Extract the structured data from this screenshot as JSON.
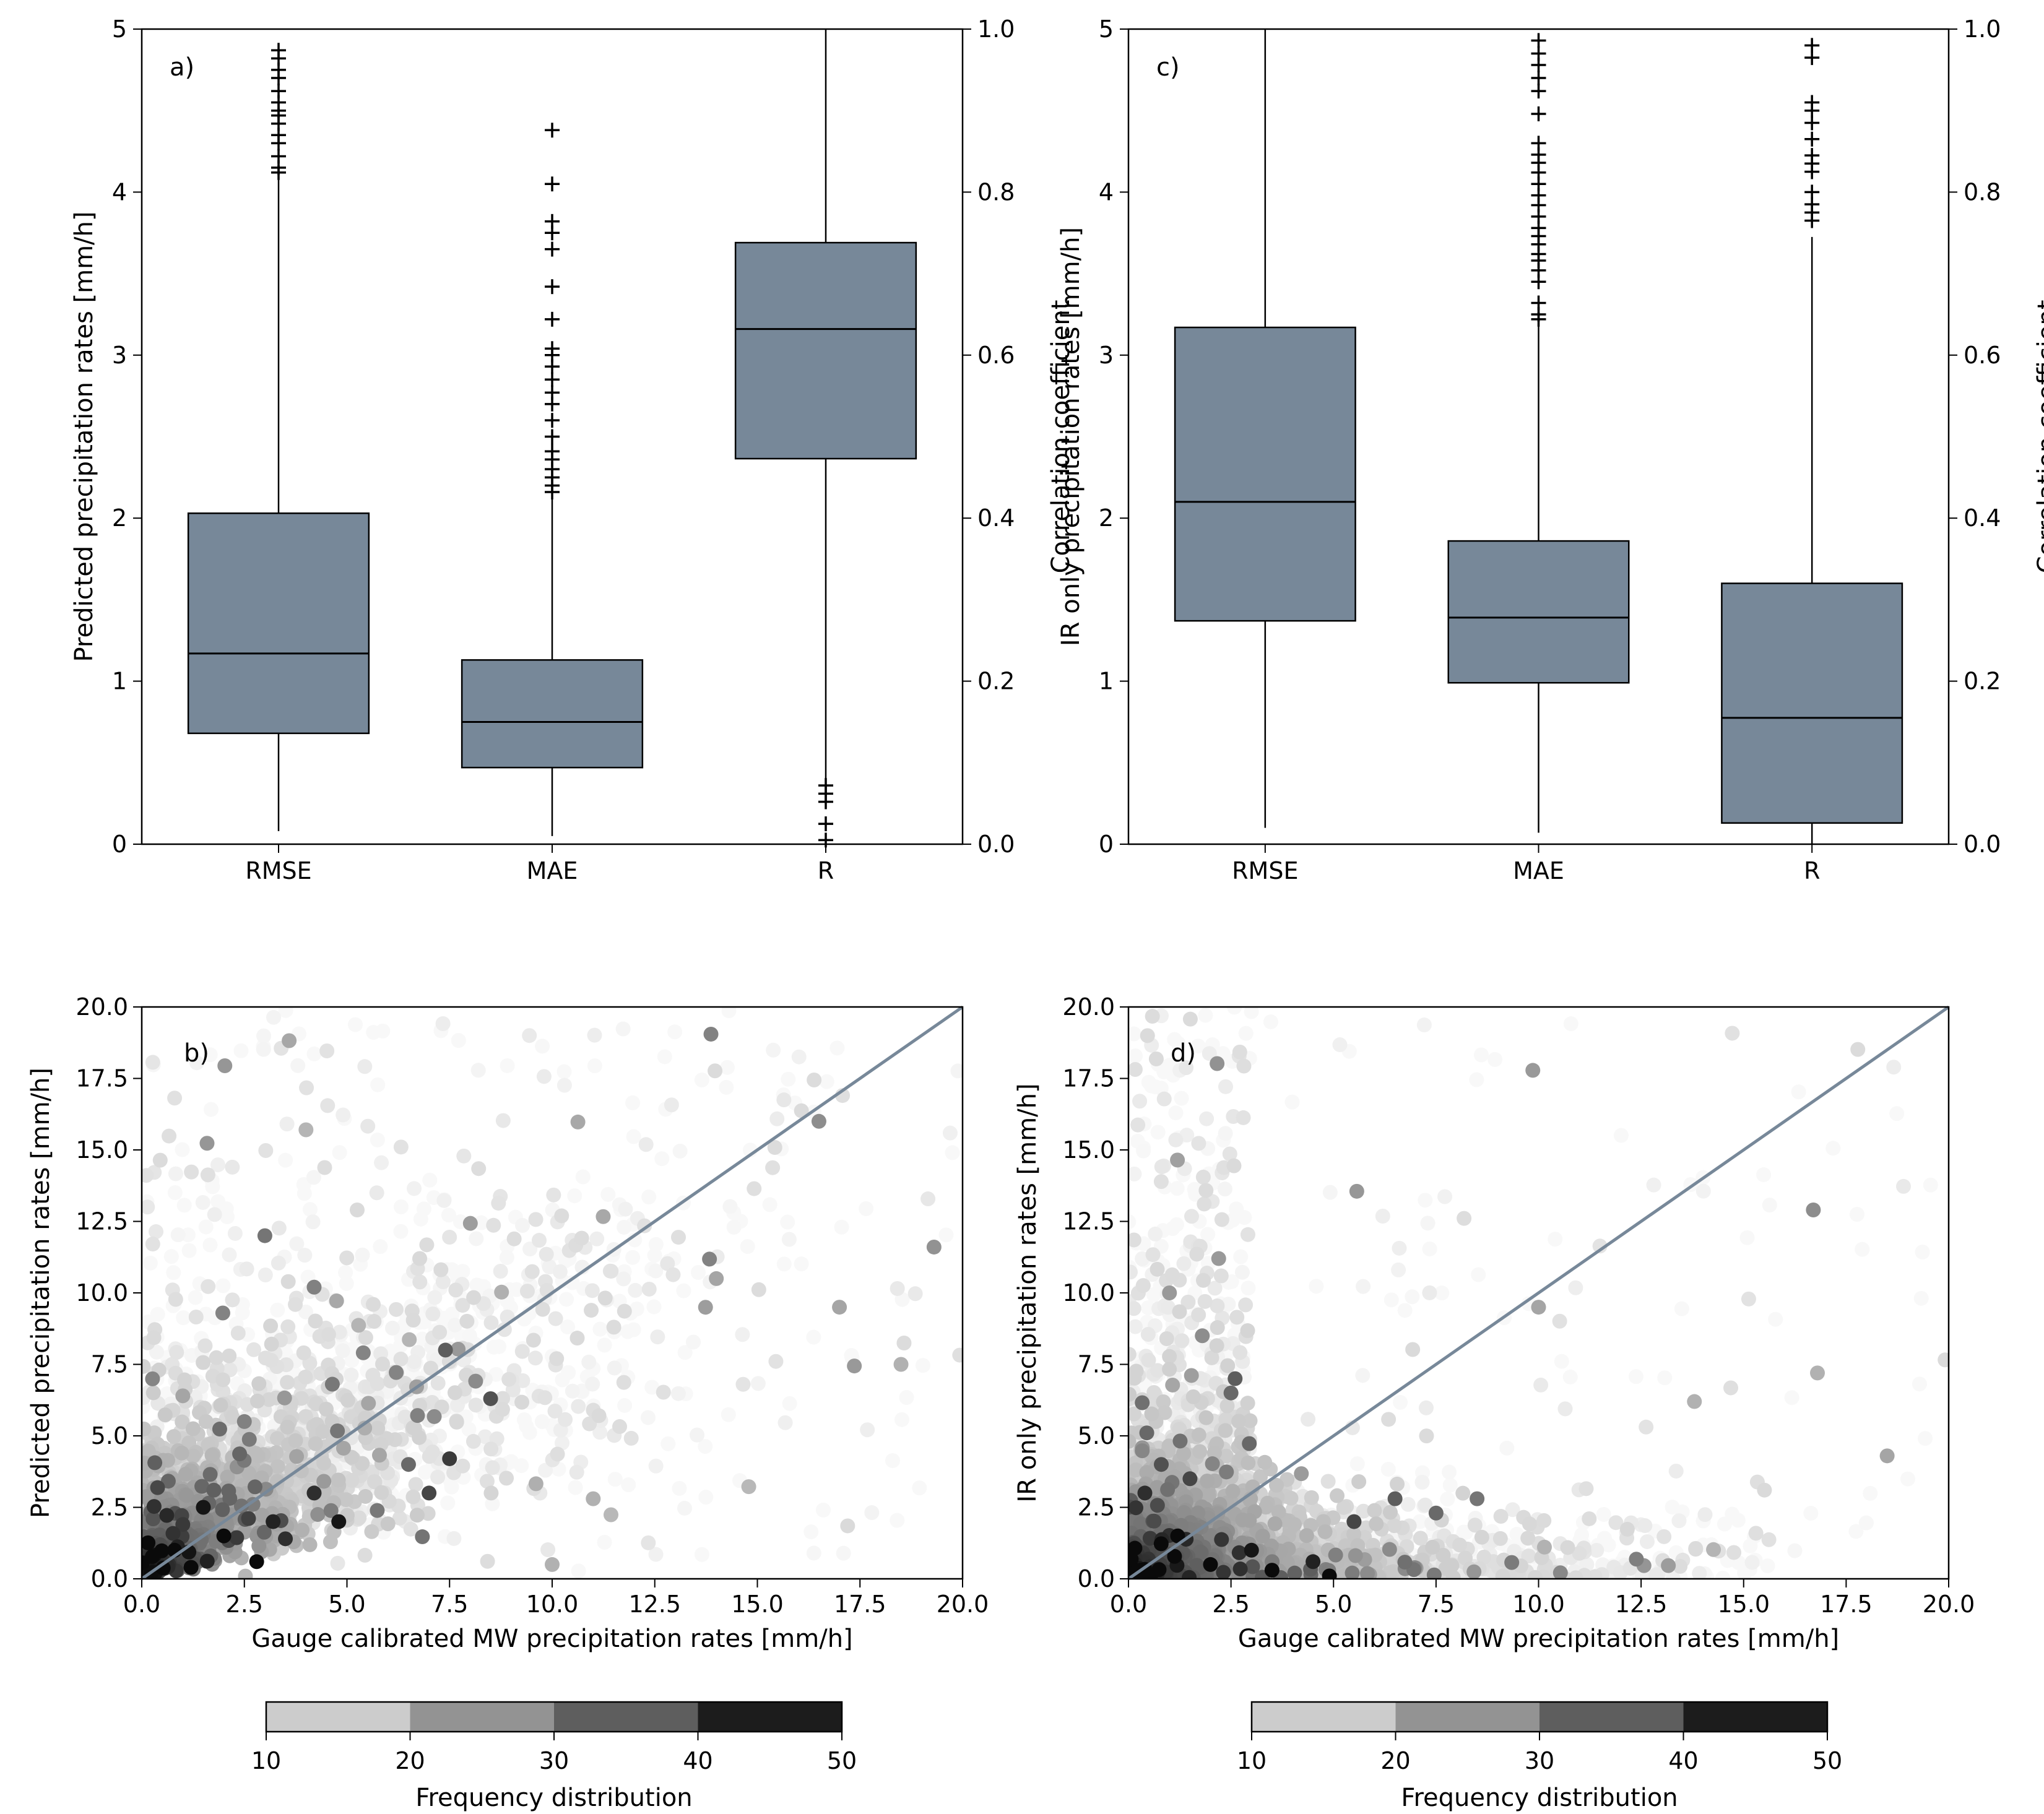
{
  "chart_data": [
    {
      "id": "a",
      "type": "box",
      "panel_label": "a)",
      "categories": [
        "RMSE",
        "MAE",
        "R"
      ],
      "ylabel_left": "Predicted precipitation rates [mm/h]",
      "ylabel_right": "Correlation coefficient",
      "ylim_left": [
        0,
        5
      ],
      "ylim_right": [
        0,
        1.0
      ],
      "yticks_left": [
        "0",
        "1",
        "2",
        "3",
        "4",
        "5"
      ],
      "yticks_right": [
        "0.0",
        "0.2",
        "0.4",
        "0.6",
        "0.8",
        "1.0"
      ],
      "boxes": [
        {
          "name": "RMSE",
          "axis": "left",
          "whisker_low": 0.08,
          "q1": 0.68,
          "median": 1.17,
          "q3": 2.03,
          "whisker_high": 4.08,
          "outliers": [
            4.12,
            4.15,
            4.22,
            4.3,
            4.35,
            4.42,
            4.47,
            4.5,
            4.55,
            4.62,
            4.7,
            4.75,
            4.82,
            4.87
          ]
        },
        {
          "name": "MAE",
          "axis": "left",
          "whisker_low": 0.05,
          "q1": 0.47,
          "median": 0.75,
          "q3": 1.13,
          "whisker_high": 2.13,
          "outliers": [
            2.16,
            2.2,
            2.25,
            2.3,
            2.36,
            2.41,
            2.5,
            2.6,
            2.7,
            2.77,
            2.85,
            2.93,
            3.0,
            3.04,
            3.22,
            3.42,
            3.65,
            3.75,
            3.82,
            4.05,
            4.38
          ]
        },
        {
          "name": "R",
          "axis": "right",
          "whisker_low": 0.075,
          "q1": 0.473,
          "median": 0.632,
          "q3": 0.738,
          "whisker_high": 1.0,
          "outliers": [
            0.005,
            0.025,
            0.052,
            0.062,
            0.072
          ]
        }
      ]
    },
    {
      "id": "c",
      "type": "box",
      "panel_label": "c)",
      "categories": [
        "RMSE",
        "MAE",
        "R"
      ],
      "ylabel_left": "IR only precipitation rates [mm/h]",
      "ylabel_right": "Correlation coefficient",
      "ylim_left": [
        0,
        5
      ],
      "ylim_right": [
        0,
        1.0
      ],
      "yticks_left": [
        "0",
        "1",
        "2",
        "3",
        "4",
        "5"
      ],
      "yticks_right": [
        "0.0",
        "0.2",
        "0.4",
        "0.6",
        "0.8",
        "1.0"
      ],
      "boxes": [
        {
          "name": "RMSE",
          "axis": "left",
          "whisker_low": 0.1,
          "q1": 1.37,
          "median": 2.1,
          "q3": 3.17,
          "whisker_high": 5.0,
          "outliers": []
        },
        {
          "name": "MAE",
          "axis": "left",
          "whisker_low": 0.07,
          "q1": 0.99,
          "median": 1.39,
          "q3": 1.86,
          "whisker_high": 3.2,
          "outliers": [
            3.22,
            3.25,
            3.32,
            3.45,
            3.52,
            3.58,
            3.62,
            3.68,
            3.73,
            3.78,
            3.85,
            3.92,
            3.98,
            4.05,
            4.12,
            4.18,
            4.23,
            4.3,
            4.48,
            4.62,
            4.7,
            4.78,
            4.85,
            4.93
          ]
        },
        {
          "name": "R",
          "axis": "right",
          "whisker_low": 0.0,
          "q1": 0.026,
          "median": 0.155,
          "q3": 0.32,
          "whisker_high": 0.745,
          "outliers": [
            0.765,
            0.775,
            0.785,
            0.8,
            0.825,
            0.835,
            0.845,
            0.865,
            0.885,
            0.9,
            0.91,
            0.965,
            0.98
          ]
        }
      ]
    },
    {
      "id": "b",
      "type": "scatter",
      "panel_label": "b)",
      "xlabel": "Gauge calibrated MW precipitation rates [mm/h]",
      "ylabel": "Predicted precipitation rates [mm/h]",
      "xlim": [
        0,
        20
      ],
      "ylim": [
        0,
        20
      ],
      "xticks": [
        "0.0",
        "2.5",
        "5.0",
        "7.5",
        "10.0",
        "12.5",
        "15.0",
        "17.5",
        "20.0"
      ],
      "yticks": [
        "0.0",
        "2.5",
        "5.0",
        "7.5",
        "10.0",
        "12.5",
        "15.0",
        "17.5",
        "20.0"
      ],
      "reference_line": [
        [
          0,
          0
        ],
        [
          20,
          20
        ]
      ],
      "line_color": "#778899",
      "density_model": "predicted",
      "note": "Points colored by frequency (10-50); values sampled to reproduce the depicted cloud.",
      "highlight_points": [
        {
          "x": 3.0,
          "y": 12.0,
          "f": 32
        },
        {
          "x": 16.5,
          "y": 16.0,
          "f": 28
        },
        {
          "x": 4.2,
          "y": 10.2,
          "f": 30
        },
        {
          "x": 7.4,
          "y": 8.0,
          "f": 36
        },
        {
          "x": 8.5,
          "y": 6.3,
          "f": 38
        },
        {
          "x": 7.5,
          "y": 4.2,
          "f": 42
        },
        {
          "x": 7.0,
          "y": 3.0,
          "f": 40
        },
        {
          "x": 6.5,
          "y": 4.0,
          "f": 34
        },
        {
          "x": 2.5,
          "y": 5.5,
          "f": 30
        },
        {
          "x": 1.5,
          "y": 2.5,
          "f": 48
        },
        {
          "x": 2.0,
          "y": 1.5,
          "f": 50
        },
        {
          "x": 3.2,
          "y": 2.0,
          "f": 46
        },
        {
          "x": 4.2,
          "y": 3.0,
          "f": 44
        },
        {
          "x": 4.8,
          "y": 2.0,
          "f": 48
        },
        {
          "x": 2.8,
          "y": 0.6,
          "f": 50
        },
        {
          "x": 0.8,
          "y": 1.0,
          "f": 50
        },
        {
          "x": 1.2,
          "y": 0.4,
          "f": 50
        },
        {
          "x": 3.5,
          "y": 1.4,
          "f": 44
        },
        {
          "x": 17.0,
          "y": 9.5,
          "f": 24
        },
        {
          "x": 18.5,
          "y": 7.5,
          "f": 22
        },
        {
          "x": 14.0,
          "y": 10.5,
          "f": 24
        },
        {
          "x": 11.0,
          "y": 2.8,
          "f": 22
        },
        {
          "x": 10.0,
          "y": 0.5,
          "f": 22
        },
        {
          "x": 1.0,
          "y": 6.4,
          "f": 24
        }
      ]
    },
    {
      "id": "d",
      "type": "scatter",
      "panel_label": "d)",
      "xlabel": "Gauge calibrated MW precipitation rates [mm/h]",
      "ylabel": "IR only precipitation rates [mm/h]",
      "xlim": [
        0,
        20
      ],
      "ylim": [
        0,
        20
      ],
      "xticks": [
        "0.0",
        "2.5",
        "5.0",
        "7.5",
        "10.0",
        "12.5",
        "15.0",
        "17.5",
        "20.0"
      ],
      "yticks": [
        "0.0",
        "2.5",
        "5.0",
        "7.5",
        "10.0",
        "12.5",
        "15.0",
        "17.5",
        "20.0"
      ],
      "reference_line": [
        [
          0,
          0
        ],
        [
          20,
          20
        ]
      ],
      "line_color": "#778899",
      "density_model": "ir_only",
      "note": "Points colored by frequency (10-50); values sampled to reproduce the depicted cloud.",
      "highlight_points": [
        {
          "x": 16.7,
          "y": 12.9,
          "f": 28
        },
        {
          "x": 10.0,
          "y": 9.5,
          "f": 24
        },
        {
          "x": 2.2,
          "y": 11.2,
          "f": 26
        },
        {
          "x": 1.0,
          "y": 10.0,
          "f": 26
        },
        {
          "x": 1.8,
          "y": 8.5,
          "f": 28
        },
        {
          "x": 2.5,
          "y": 6.5,
          "f": 34
        },
        {
          "x": 2.6,
          "y": 7.0,
          "f": 36
        },
        {
          "x": 0.8,
          "y": 4.0,
          "f": 38
        },
        {
          "x": 0.4,
          "y": 3.0,
          "f": 44
        },
        {
          "x": 1.2,
          "y": 1.5,
          "f": 50
        },
        {
          "x": 2.0,
          "y": 0.5,
          "f": 50
        },
        {
          "x": 3.0,
          "y": 1.0,
          "f": 48
        },
        {
          "x": 3.5,
          "y": 0.3,
          "f": 50
        },
        {
          "x": 4.5,
          "y": 0.6,
          "f": 46
        },
        {
          "x": 4.9,
          "y": 0.1,
          "f": 50
        },
        {
          "x": 6.5,
          "y": 2.8,
          "f": 36
        },
        {
          "x": 7.5,
          "y": 2.3,
          "f": 34
        },
        {
          "x": 8.5,
          "y": 2.8,
          "f": 32
        },
        {
          "x": 5.5,
          "y": 2.0,
          "f": 40
        },
        {
          "x": 16.8,
          "y": 7.2,
          "f": 22
        },
        {
          "x": 18.5,
          "y": 4.3,
          "f": 24
        },
        {
          "x": 13.8,
          "y": 6.2,
          "f": 22
        },
        {
          "x": 0.3,
          "y": 0.3,
          "f": 50
        },
        {
          "x": 1.5,
          "y": 3.5,
          "f": 40
        }
      ]
    }
  ],
  "colorbars": [
    {
      "id": "cb-left",
      "label": "Frequency distribution",
      "ticks": [
        "10",
        "20",
        "30",
        "40",
        "50"
      ],
      "colors": [
        "#cccccc",
        "#939393",
        "#5e5e5e",
        "#1c1c1c"
      ]
    },
    {
      "id": "cb-right",
      "label": "Frequency distribution",
      "ticks": [
        "10",
        "20",
        "30",
        "40",
        "50"
      ],
      "colors": [
        "#cccccc",
        "#939393",
        "#5e5e5e",
        "#1c1c1c"
      ]
    }
  ],
  "colors": {
    "box_fill": "#778899",
    "axis": "#000000",
    "reference_line": "#778899"
  }
}
